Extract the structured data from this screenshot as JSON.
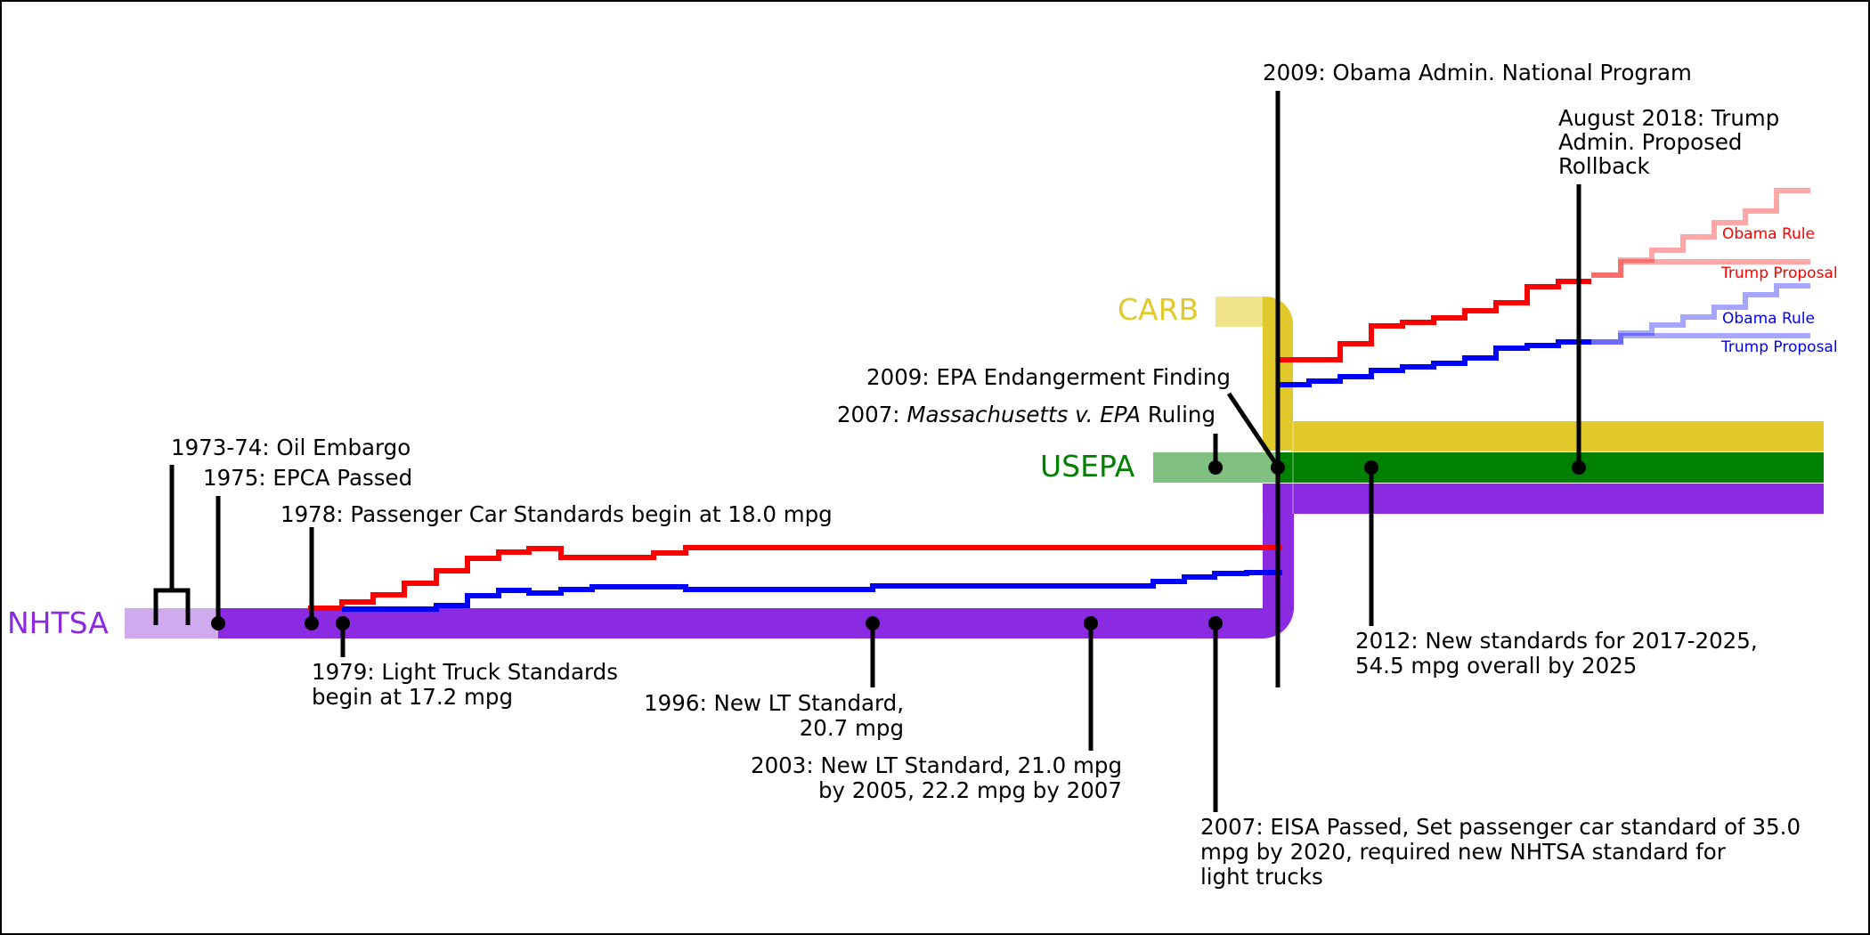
{
  "colors": {
    "nhtsa": "#8a2be2",
    "nhtsa_light": "#cfaaee",
    "usepa": "#008000",
    "usepa_light": "#80c080",
    "carb": "#e2c92b",
    "carb_light": "#f0e28a",
    "passenger": "#ff0000",
    "truck": "#0000ff",
    "marker": "#000000"
  },
  "agencies": {
    "nhtsa": "NHTSA",
    "usepa": "USEPA",
    "carb": "CARB"
  },
  "events": {
    "embargo": "1973-74: Oil Embargo",
    "epca": "1975: EPCA Passed",
    "pc1978": "1978: Passenger Car Standards begin at 18.0 mpg",
    "lt1979_l1": "1979: Light Truck Standards",
    "lt1979_l2": "begin at 17.2 mpg",
    "lt1996_l1": "1996: New LT Standard,",
    "lt1996_l2": "20.7 mpg",
    "lt2003_l1": "2003: New LT Standard, 21.0 mpg",
    "lt2003_l2": "by 2005, 22.2 mpg by 2007",
    "eisa_l1": "2007: EISA Passed, Set passenger car standard of 35.0",
    "eisa_l2": "mpg by 2020, required new NHTSA standard for",
    "eisa_l3": "light trucks",
    "mass_prefix": "2007: ",
    "mass_italic": "Massachusetts v. EPA",
    "mass_suffix": " Ruling",
    "endangerment": "2009: EPA Endangerment Finding",
    "national": "2009: Obama Admin. National Program",
    "std2012_l1": "2012: New standards for 2017-2025,",
    "std2012_l2": "54.5 mpg overall by 2025",
    "trump_l1": "August 2018: Trump",
    "trump_l2": "Admin. Proposed",
    "trump_l3": "Rollback"
  },
  "legend": {
    "car_obama": "Obama Rule",
    "car_trump": "Trump Proposal",
    "truck_obama": "Obama Rule",
    "truck_trump": "Trump Proposal"
  }
}
